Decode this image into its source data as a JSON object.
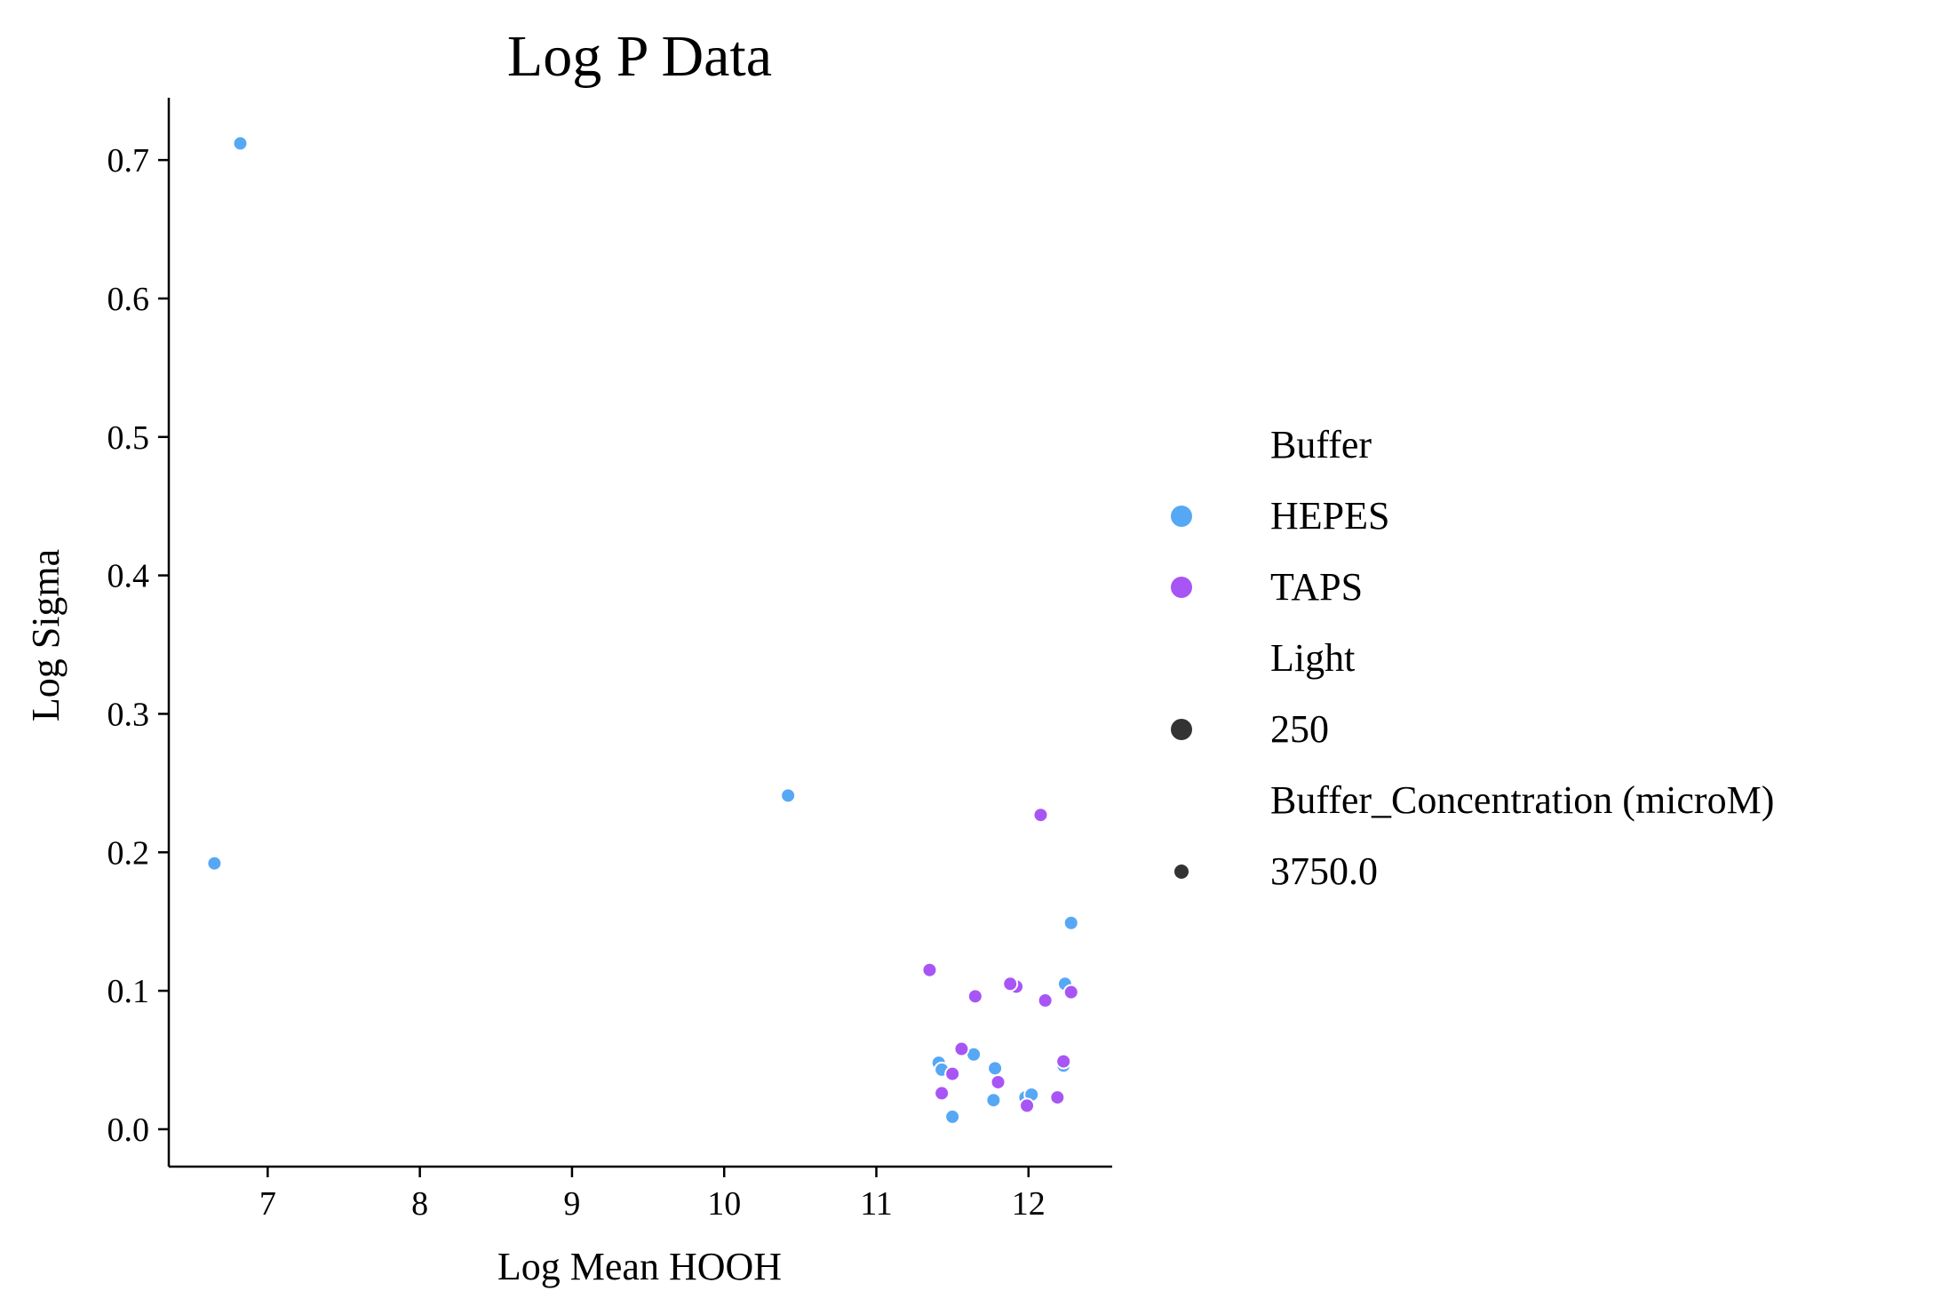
{
  "chart_data": {
    "type": "scatter",
    "title": "Log P Data",
    "xlabel": "Log Mean HOOH",
    "ylabel": "Log Sigma",
    "xlim": [
      6.35,
      12.55
    ],
    "ylim": [
      -0.027,
      0.745
    ],
    "xticks": [
      7,
      8,
      9,
      10,
      11,
      12
    ],
    "yticks": [
      0.0,
      0.1,
      0.2,
      0.3,
      0.4,
      0.5,
      0.6,
      0.7
    ],
    "xtick_labels": [
      "7",
      "8",
      "9",
      "10",
      "11",
      "12"
    ],
    "ytick_labels": [
      "0.0",
      "0.1",
      "0.2",
      "0.3",
      "0.4",
      "0.5",
      "0.6",
      "0.7"
    ],
    "grid": false,
    "legend_position": "right",
    "series": [
      {
        "name": "HEPES",
        "color": "#56a8f5",
        "points": [
          {
            "x": 6.82,
            "y": 0.712
          },
          {
            "x": 6.65,
            "y": 0.192
          },
          {
            "x": 10.42,
            "y": 0.241
          },
          {
            "x": 12.28,
            "y": 0.149
          },
          {
            "x": 12.24,
            "y": 0.105
          },
          {
            "x": 11.89,
            "y": 0.105
          },
          {
            "x": 11.41,
            "y": 0.048
          },
          {
            "x": 11.43,
            "y": 0.043
          },
          {
            "x": 11.64,
            "y": 0.054
          },
          {
            "x": 11.78,
            "y": 0.044
          },
          {
            "x": 12.23,
            "y": 0.046
          },
          {
            "x": 11.98,
            "y": 0.023
          },
          {
            "x": 12.02,
            "y": 0.025
          },
          {
            "x": 11.77,
            "y": 0.021
          },
          {
            "x": 11.5,
            "y": 0.009
          }
        ]
      },
      {
        "name": "TAPS",
        "color": "#a855f5",
        "points": [
          {
            "x": 12.08,
            "y": 0.227
          },
          {
            "x": 11.35,
            "y": 0.115
          },
          {
            "x": 11.92,
            "y": 0.103
          },
          {
            "x": 11.88,
            "y": 0.105
          },
          {
            "x": 11.65,
            "y": 0.096
          },
          {
            "x": 12.28,
            "y": 0.099
          },
          {
            "x": 12.11,
            "y": 0.093
          },
          {
            "x": 11.56,
            "y": 0.058
          },
          {
            "x": 11.5,
            "y": 0.04
          },
          {
            "x": 12.23,
            "y": 0.049
          },
          {
            "x": 11.8,
            "y": 0.034
          },
          {
            "x": 11.43,
            "y": 0.026
          },
          {
            "x": 12.19,
            "y": 0.023
          },
          {
            "x": 11.99,
            "y": 0.017
          }
        ]
      }
    ],
    "legend": {
      "groups": [
        {
          "title": "Buffer",
          "entries": [
            {
              "label": "HEPES",
              "color": "#56a8f5",
              "marker": "large"
            },
            {
              "label": "TAPS",
              "color": "#a855f5",
              "marker": "large"
            }
          ]
        },
        {
          "title": "Light",
          "entries": [
            {
              "label": "250",
              "color": "#333333",
              "marker": "large"
            }
          ]
        },
        {
          "title": "Buffer_Concentration (microM)",
          "entries": [
            {
              "label": "3750.0",
              "color": "#333333",
              "marker": "small"
            }
          ]
        }
      ]
    }
  }
}
